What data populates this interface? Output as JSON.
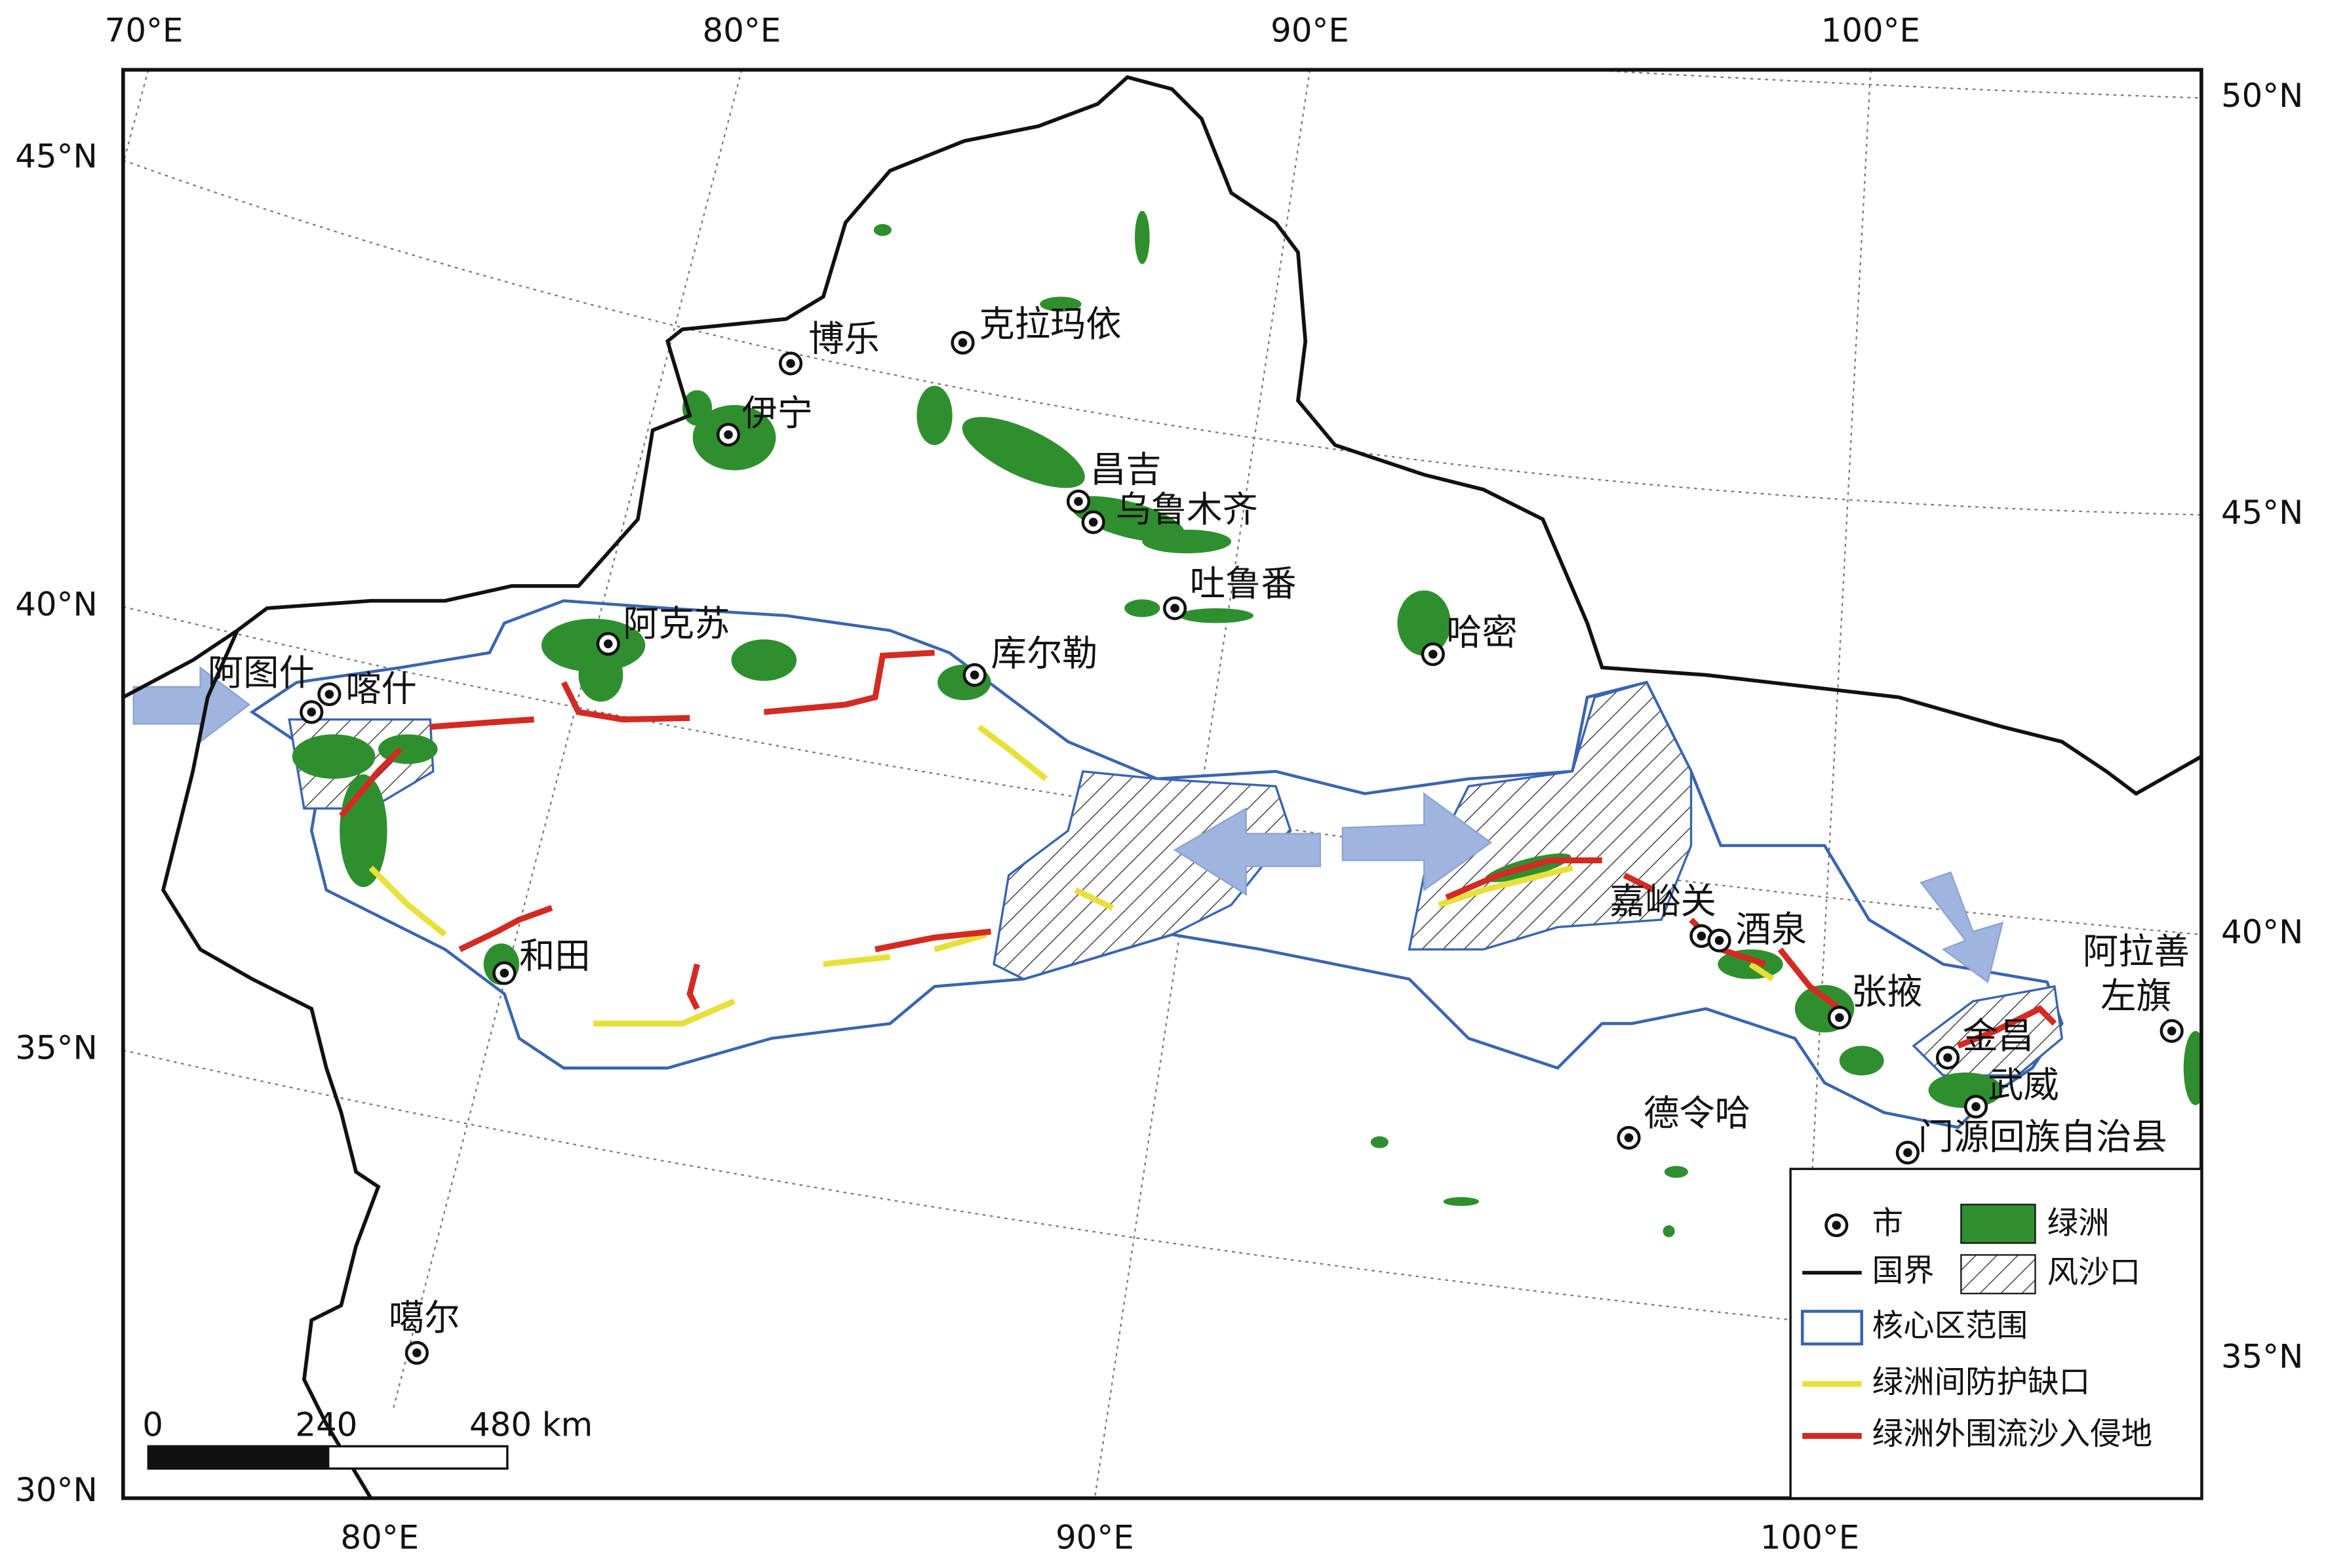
{
  "axes": {
    "top": [
      "70°E",
      "80°E",
      "90°E",
      "100°E"
    ],
    "left": [
      "45°N",
      "40°N",
      "35°N",
      "30°N"
    ],
    "bottom": [
      "80°E",
      "90°E",
      "100°E"
    ],
    "right": [
      "50°N",
      "45°N",
      "40°N",
      "35°N"
    ]
  },
  "cities": [
    {
      "name": "博乐"
    },
    {
      "name": "克拉玛依"
    },
    {
      "name": "伊宁"
    },
    {
      "name": "昌吉"
    },
    {
      "name": "乌鲁木齐"
    },
    {
      "name": "吐鲁番"
    },
    {
      "name": "哈密"
    },
    {
      "name": "阿克苏"
    },
    {
      "name": "库尔勒"
    },
    {
      "name": "阿图什"
    },
    {
      "name": "喀什"
    },
    {
      "name": "和田"
    },
    {
      "name": "嘉峪关"
    },
    {
      "name": "酒泉"
    },
    {
      "name": "张掖"
    },
    {
      "name": "金昌"
    },
    {
      "name": "武威"
    },
    {
      "lines": [
        "阿拉善",
        "左旗"
      ]
    },
    {
      "name": "德令哈"
    },
    {
      "name": "门源回族自治县"
    },
    {
      "name": "噶尔"
    }
  ],
  "legend": [
    "市",
    "绿洲",
    "国界",
    "风沙口",
    "核心区范围",
    "绿洲间防护缺口",
    "绿洲外围流沙入侵地"
  ],
  "scale_bar": [
    "0",
    "240",
    "480 km"
  ]
}
